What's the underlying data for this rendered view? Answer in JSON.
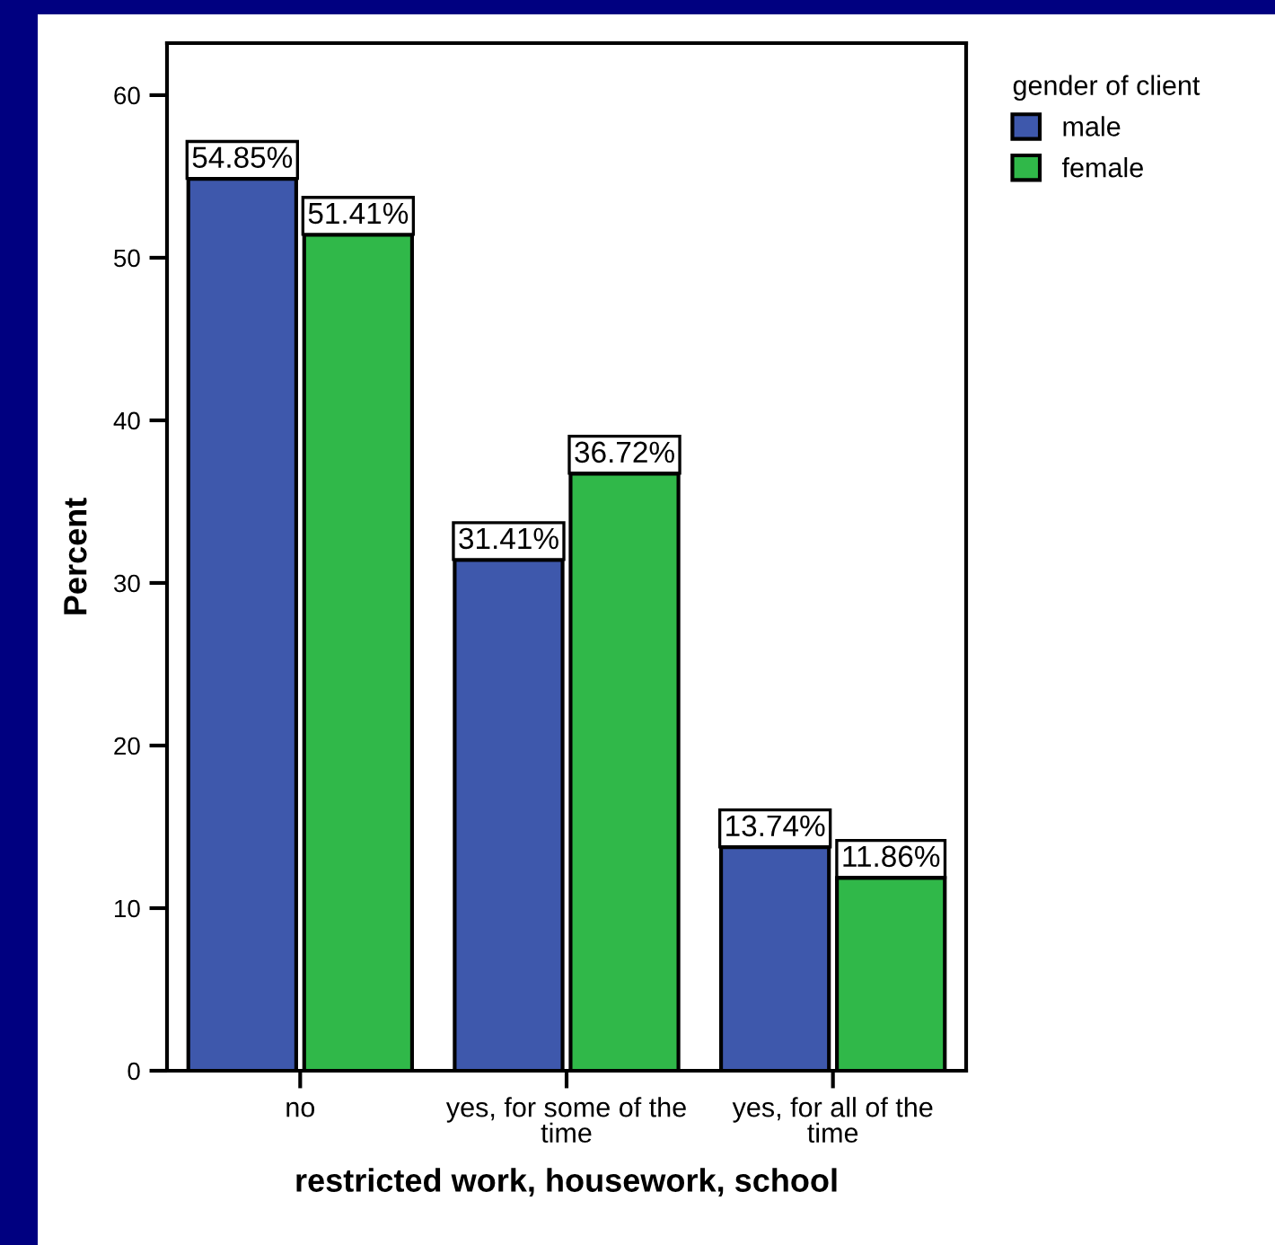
{
  "chart_data": {
    "type": "bar",
    "xlabel": "restricted work, housework, school",
    "ylabel": "Percent",
    "categories": [
      "no",
      "yes, for some of the time",
      "yes, for all of the time"
    ],
    "legend_title": "gender of client",
    "legend": "top right",
    "grid": false,
    "ylim": [
      0,
      63.2
    ],
    "yticks": [
      0,
      10,
      20,
      30,
      40,
      50,
      60
    ],
    "series": [
      {
        "name": "male",
        "color": "#3e58ac",
        "values": [
          54.85,
          31.41,
          13.74
        ],
        "value_labels": [
          "54.85%",
          "31.41%",
          "13.74%"
        ]
      },
      {
        "name": "female",
        "color": "#30b849",
        "values": [
          51.41,
          36.72,
          11.86
        ],
        "value_labels": [
          "51.41%",
          "36.72%",
          "11.86%"
        ]
      }
    ]
  }
}
